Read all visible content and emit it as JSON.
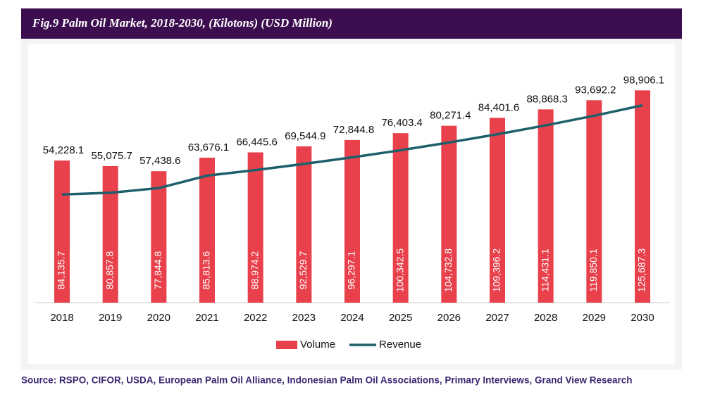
{
  "chart_data": {
    "type": "bar-line",
    "title": "Fig.9  Palm Oil Market, 2018-2030, (Kilotons) (USD Million)",
    "categories": [
      "2018",
      "2019",
      "2020",
      "2021",
      "2022",
      "2023",
      "2024",
      "2025",
      "2026",
      "2027",
      "2028",
      "2029",
      "2030"
    ],
    "series": [
      {
        "name": "Volume",
        "type": "bar",
        "color": "#e8414b",
        "values": [
          84135.7,
          80857.8,
          77844.8,
          85813.6,
          88974.2,
          92529.7,
          96297.1,
          100342.5,
          104732.8,
          109396.2,
          114431.1,
          119850.1,
          125687.3
        ],
        "value_labels": [
          "84,135.7",
          "80,857.8",
          "77,844.8",
          "85,813.6",
          "88,974.2",
          "92,529.7",
          "96,297.1",
          "100,342.5",
          "104,732.8",
          "109,396.2",
          "114,431.1",
          "119,850.1",
          "125,687.3"
        ]
      },
      {
        "name": "Revenue",
        "type": "line",
        "axis": "y2",
        "color": "#1d5f6b",
        "values": [
          54228.1,
          55075.7,
          57438.6,
          63676.1,
          66445.6,
          69544.9,
          72844.8,
          76403.4,
          80271.4,
          84401.6,
          88868.3,
          93692.2,
          98906.1
        ],
        "value_labels": [
          "54,228.1",
          "55,075.7",
          "57,438.6",
          "63,676.1",
          "66,445.6",
          "69,544.9",
          "72,844.8",
          "76,403.4",
          "80,271.4",
          "84,401.6",
          "88,868.3",
          "93,692.2",
          "98,906.1"
        ]
      }
    ],
    "ylim": [
      0,
      150000
    ],
    "y2lim": [
      0,
      127000
    ],
    "legend": "bottom",
    "source": "Source: RSPO, CIFOR, USDA, European Palm Oil Alliance, Indonesian Palm Oil Associations, Primary Interviews, Grand View Research"
  }
}
